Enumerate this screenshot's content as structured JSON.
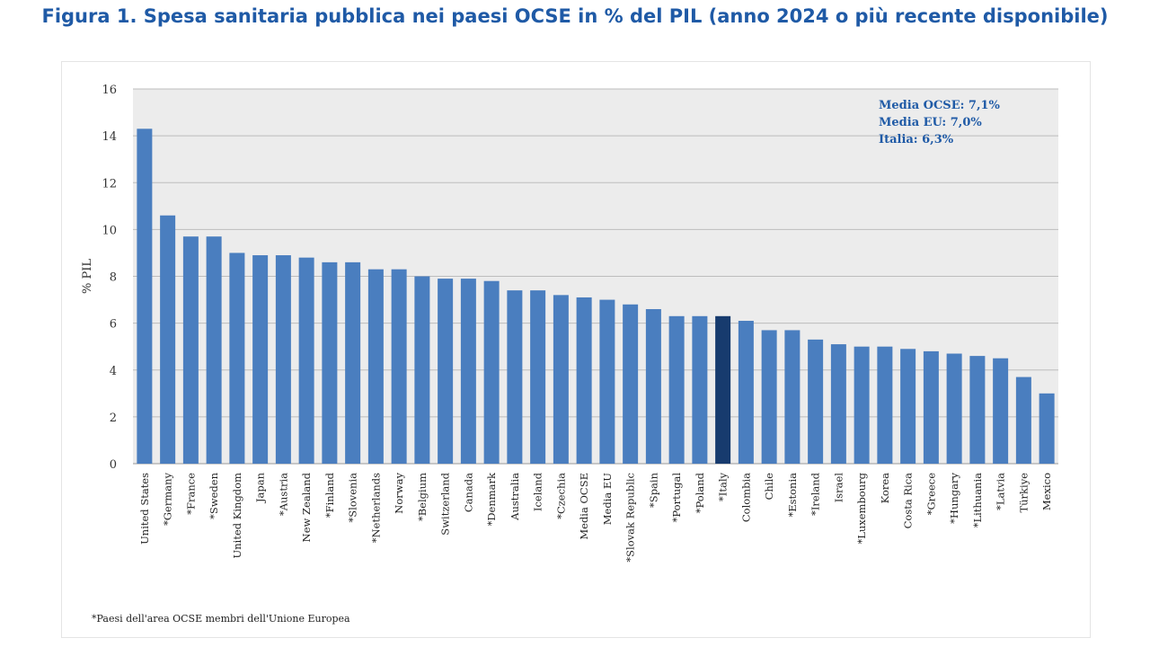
{
  "figure": {
    "title": "Figura 1. Spesa sanitaria pubblica nei paesi OCSE in % del PIL (anno 2024 o più recente disponibile)",
    "footnote": "*Paesi dell'area OCSE membri dell'Unione Europea"
  },
  "colors": {
    "bar": "#4a7ebf",
    "highlight": "#173b6e",
    "plot_bg": "#ececec",
    "grid": "#bdbdbd",
    "text": "#1f5aa6"
  },
  "chart_data": {
    "type": "bar",
    "title": "",
    "xlabel": "",
    "ylabel": "% PIL",
    "ylim": [
      0,
      16
    ],
    "yticks": [
      0,
      2,
      4,
      6,
      8,
      10,
      12,
      14,
      16
    ],
    "grid": true,
    "highlight_category": "*Italy",
    "categories": [
      "United States",
      "*Germany",
      "*France",
      "*Sweden",
      "United Kingdom",
      "Japan",
      "*Austria",
      "New Zealand",
      "*Finland",
      "*Slovenia",
      "*Netherlands",
      "Norway",
      "*Belgium",
      "Switzerland",
      "Canada",
      "*Denmark",
      "Australia",
      "Iceland",
      "*Czechia",
      "Media OCSE",
      "Media EU",
      "*Slovak Republic",
      "*Spain",
      "*Portugal",
      "*Poland",
      "*Italy",
      "Colombia",
      "Chile",
      "*Estonia",
      "*Ireland",
      "Israel",
      "*Luxembourg",
      "Korea",
      "Costa Rica",
      "*Greece",
      "*Hungary",
      "*Lithuania",
      "*Latvia",
      "Türkiye",
      "Mexico"
    ],
    "values": [
      14.3,
      10.6,
      9.7,
      9.7,
      9.0,
      8.9,
      8.9,
      8.8,
      8.6,
      8.6,
      8.3,
      8.3,
      8.0,
      7.9,
      7.9,
      7.8,
      7.4,
      7.4,
      7.2,
      7.1,
      7.0,
      6.8,
      6.6,
      6.3,
      6.3,
      6.3,
      6.1,
      5.7,
      5.7,
      5.3,
      5.1,
      5.0,
      5.0,
      4.9,
      4.8,
      4.7,
      4.6,
      4.5,
      3.7,
      3.0
    ],
    "annotations": [
      "Media OCSE: 7,1%",
      "Media EU: 7,0%",
      "Italia: 6,3%"
    ]
  }
}
